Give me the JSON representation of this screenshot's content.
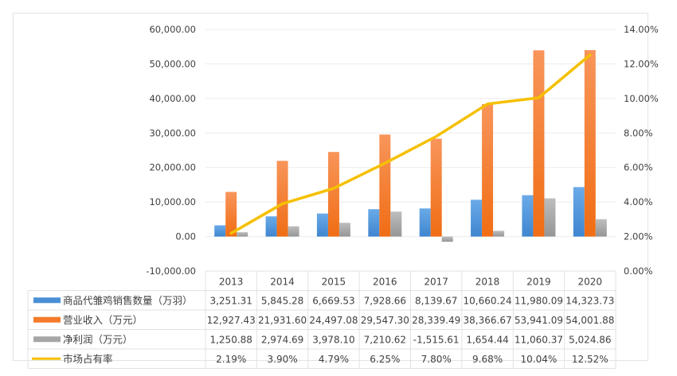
{
  "chart_data": {
    "type": "bar",
    "title": "",
    "xlabel": "",
    "ylabel": "",
    "categories": [
      "2013",
      "2014",
      "2015",
      "2016",
      "2017",
      "2018",
      "2019",
      "2020"
    ],
    "series": [
      {
        "name": "商品代雏鸡销售数量（万羽）",
        "type": "bar",
        "axis": "left",
        "color": "#4a8fd6",
        "values": [
          3251.31,
          5845.28,
          6669.53,
          7928.66,
          8139.67,
          10660.24,
          11980.09,
          14323.73
        ],
        "labels": [
          "3,251.31",
          "5,845.28",
          "6,669.53",
          "7,928.66",
          "8,139.67",
          "10,660.24",
          "11,980.09",
          "14,323.73"
        ]
      },
      {
        "name": "营业收入（万元）",
        "type": "bar",
        "axis": "left",
        "color": "#f47b2a",
        "values": [
          12927.43,
          21931.6,
          24497.08,
          29547.3,
          28339.49,
          38366.67,
          53941.09,
          54001.88
        ],
        "labels": [
          "12,927.43",
          "21,931.60",
          "24,497.08",
          "29,547.30",
          "28,339.49",
          "38,366.67",
          "53,941.09",
          "54,001.88"
        ]
      },
      {
        "name": "净利润（万元）",
        "type": "bar",
        "axis": "left",
        "color": "#a6a6a6",
        "values": [
          1250.88,
          2974.69,
          3978.1,
          7210.62,
          -1515.61,
          1654.44,
          11060.37,
          5024.86
        ],
        "labels": [
          "1,250.88",
          "2,974.69",
          "3,978.10",
          "7,210.62",
          "-1,515.61",
          "1,654.44",
          "11,060.37",
          "5,024.86"
        ]
      },
      {
        "name": "市场占有率",
        "type": "line",
        "axis": "right",
        "color": "#f5c000",
        "values": [
          2.19,
          3.9,
          4.79,
          6.25,
          7.8,
          9.68,
          10.04,
          12.52
        ],
        "labels": [
          "2.19%",
          "3.90%",
          "4.79%",
          "6.25%",
          "7.80%",
          "9.68%",
          "10.04%",
          "12.52%"
        ]
      }
    ],
    "y_left": {
      "ylim": [
        -10000,
        60000
      ],
      "ticks": [
        60000,
        50000,
        40000,
        30000,
        20000,
        10000,
        0,
        -10000
      ],
      "tick_labels": [
        "60,000.00",
        "50,000.00",
        "40,000.00",
        "30,000.00",
        "20,000.00",
        "10,000.00",
        "0.00",
        "-10,000.00"
      ]
    },
    "y_right": {
      "ylim": [
        0,
        14
      ],
      "ticks": [
        14,
        12,
        10,
        8,
        6,
        4,
        2,
        0
      ],
      "tick_labels": [
        "14.00%",
        "12.00%",
        "10.00%",
        "8.00%",
        "6.00%",
        "4.00%",
        "2.00%",
        "0.00%"
      ]
    },
    "grid": true,
    "legend": "data-table-bottom"
  }
}
